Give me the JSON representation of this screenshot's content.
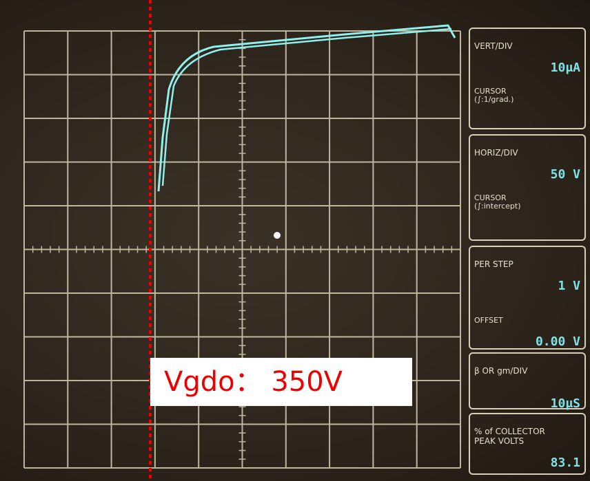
{
  "panels": [
    {
      "title": "VERT/DIV",
      "value": "10μA",
      "note": "CURSOR\n(∫:1/grad.)"
    },
    {
      "title": "HORIZ/DIV",
      "value": "50 V",
      "note": "CURSOR\n(∫:intercept)"
    },
    {
      "title": "PER STEP",
      "value": "1 V",
      "note": "OFFSET",
      "value2": "0.00 V"
    },
    {
      "title": "β OR gm/DIV",
      "value": "10μS"
    },
    {
      "title": "% of COLLECTOR\nPEAK VOLTS",
      "value": "83.1"
    }
  ],
  "annotation": "Vgdo： 350V"
}
